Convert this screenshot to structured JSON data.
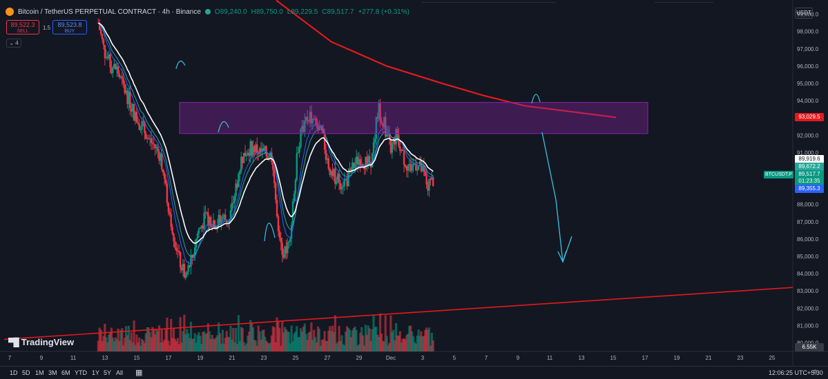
{
  "header": {
    "symbol_title": "Bitcoin / TetherUS PERPETUAL CONTRACT · 4h · Binance",
    "ohlc": {
      "open": "O89,240.0",
      "high": "H89,750.0",
      "low": "L89,229.5",
      "close": "C89,517.7",
      "change": "+277.8 (+0.31%)"
    },
    "sell": {
      "price": "89,522.3",
      "label": "SELL"
    },
    "buy": {
      "price": "89,523.8",
      "label": "BUY"
    },
    "spread": "1.5",
    "indicator_count": "4",
    "currency": "USDT"
  },
  "watermark": "TradingView",
  "price_axis": {
    "ticks": [
      "99,000.0",
      "98,000.0",
      "97,000.0",
      "96,000.0",
      "95,000.0",
      "94,000.0",
      "92,000.0",
      "91,000.0",
      "88,000.0",
      "87,000.0",
      "86,000.0",
      "85,000.0",
      "84,000.0",
      "83,000.0",
      "82,000.0",
      "81,000.0",
      "80,000.0"
    ],
    "labels": {
      "ma_red": "93,029.5",
      "ema_white": "89,919.6",
      "ema_teal": "89,672.2",
      "last_price": "89,517.7",
      "countdown": "01:23:35",
      "ema_blue": "89,355.3",
      "volume": "6.55K"
    },
    "symbol_tag": "BTCUSDT.P"
  },
  "time_axis": {
    "ticks": [
      "7",
      "9",
      "11",
      "13",
      "15",
      "17",
      "19",
      "21",
      "23",
      "25",
      "27",
      "29",
      "Dec",
      "3",
      "5",
      "7",
      "9",
      "11",
      "13",
      "15",
      "17",
      "19",
      "21",
      "23",
      "25"
    ]
  },
  "bottom_toolbar": {
    "timeframes": [
      "1D",
      "5D",
      "1M",
      "3M",
      "6M",
      "YTD",
      "1Y",
      "5Y",
      "All"
    ],
    "clock": "12:06:25 UTC+5:30"
  },
  "colors": {
    "background": "#131722",
    "up": "#089981",
    "down": "#f23645",
    "ma_red": "#e31a1c",
    "zone": "#7b1fa2",
    "arrow": "#3ab7d8"
  },
  "icons": [
    "bitcoin-icon",
    "collapse-chevron-icon",
    "tradingview-logo-icon",
    "date-range-icon",
    "settings-icon"
  ],
  "chart_data": {
    "type": "candlestick",
    "x_range": [
      "Nov 7",
      "Dec 25"
    ],
    "ylim": [
      79500,
      99500
    ],
    "close_path": [
      [
        0,
        98500
      ],
      [
        2,
        96800
      ],
      [
        4,
        96000
      ],
      [
        6,
        95800
      ],
      [
        8,
        94800
      ],
      [
        10,
        94000
      ],
      [
        12,
        93000
      ],
      [
        14,
        92600
      ],
      [
        16,
        91800
      ],
      [
        18,
        91400
      ],
      [
        20,
        90800
      ],
      [
        22,
        88500
      ],
      [
        24,
        86500
      ],
      [
        26,
        84800
      ],
      [
        28,
        83800
      ],
      [
        30,
        84800
      ],
      [
        32,
        86400
      ],
      [
        34,
        87100
      ],
      [
        36,
        87200
      ],
      [
        38,
        86900
      ],
      [
        40,
        87300
      ],
      [
        42,
        87000
      ],
      [
        44,
        88700
      ],
      [
        46,
        90600
      ],
      [
        48,
        91200
      ],
      [
        50,
        91300
      ],
      [
        52,
        91000
      ],
      [
        54,
        90900
      ],
      [
        56,
        90800
      ],
      [
        58,
        85800
      ],
      [
        60,
        85200
      ],
      [
        62,
        86700
      ],
      [
        64,
        91200
      ],
      [
        66,
        92600
      ],
      [
        68,
        93200
      ],
      [
        70,
        92500
      ],
      [
        72,
        92000
      ],
      [
        74,
        90300
      ],
      [
        76,
        89600
      ],
      [
        78,
        89300
      ],
      [
        80,
        89400
      ],
      [
        82,
        90200
      ],
      [
        84,
        90700
      ],
      [
        86,
        90400
      ],
      [
        88,
        90600
      ],
      [
        90,
        93600
      ],
      [
        92,
        92600
      ],
      [
        94,
        91200
      ],
      [
        96,
        92100
      ],
      [
        98,
        90700
      ],
      [
        100,
        90100
      ],
      [
        102,
        90400
      ],
      [
        104,
        90000
      ],
      [
        106,
        89000
      ],
      [
        108,
        89500
      ]
    ],
    "series": [
      {
        "type": "line",
        "values_desc": "200-period MA sloping down from ~100,000 to 93,029.5"
      },
      {
        "type": "line",
        "values_desc": "slow EMA ending at 89,919.6"
      },
      {
        "type": "line",
        "values_desc": "fast EMA ending at 89,672.2"
      },
      {
        "type": "line",
        "values_desc": "fast EMA ending at 89,355.3"
      }
    ],
    "annotations": [
      {
        "type": "rectangle",
        "y_range": [
          92100,
          93900
        ],
        "x_range": [
          "Nov 17",
          "Dec 15"
        ]
      },
      {
        "type": "trendline",
        "from": [
          "Nov 7",
          80200
        ],
        "to": [
          "Dec 25",
          83200
        ]
      },
      {
        "type": "arrow",
        "desc": "down projection from ~94,000 to ~84,000"
      }
    ],
    "volume_last": "6.55K"
  }
}
